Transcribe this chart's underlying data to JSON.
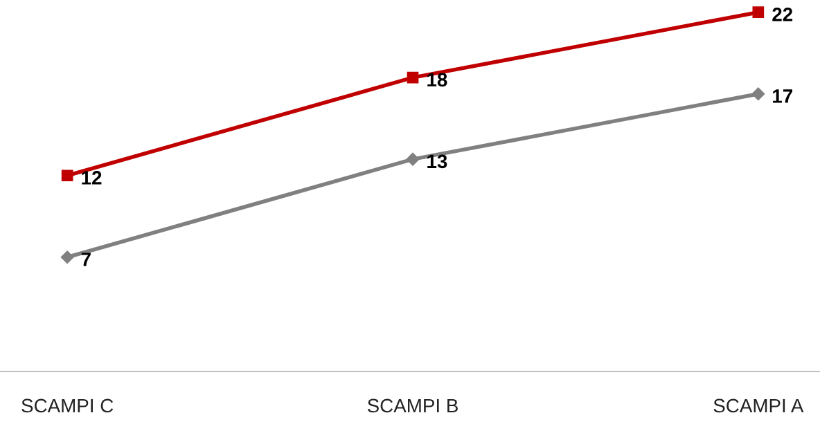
{
  "chart_data": {
    "type": "line",
    "categories": [
      "SCAMPI C",
      "SCAMPI B",
      "SCAMPI A"
    ],
    "series": [
      {
        "color": "#c00000",
        "marker": "square",
        "values": [
          12,
          18,
          22
        ]
      },
      {
        "color": "#808080",
        "marker": "diamond",
        "values": [
          7,
          13,
          17
        ]
      }
    ],
    "tick_labels": "x",
    "data_labels": true,
    "grid": false,
    "legend": false,
    "line_style": "solid"
  }
}
